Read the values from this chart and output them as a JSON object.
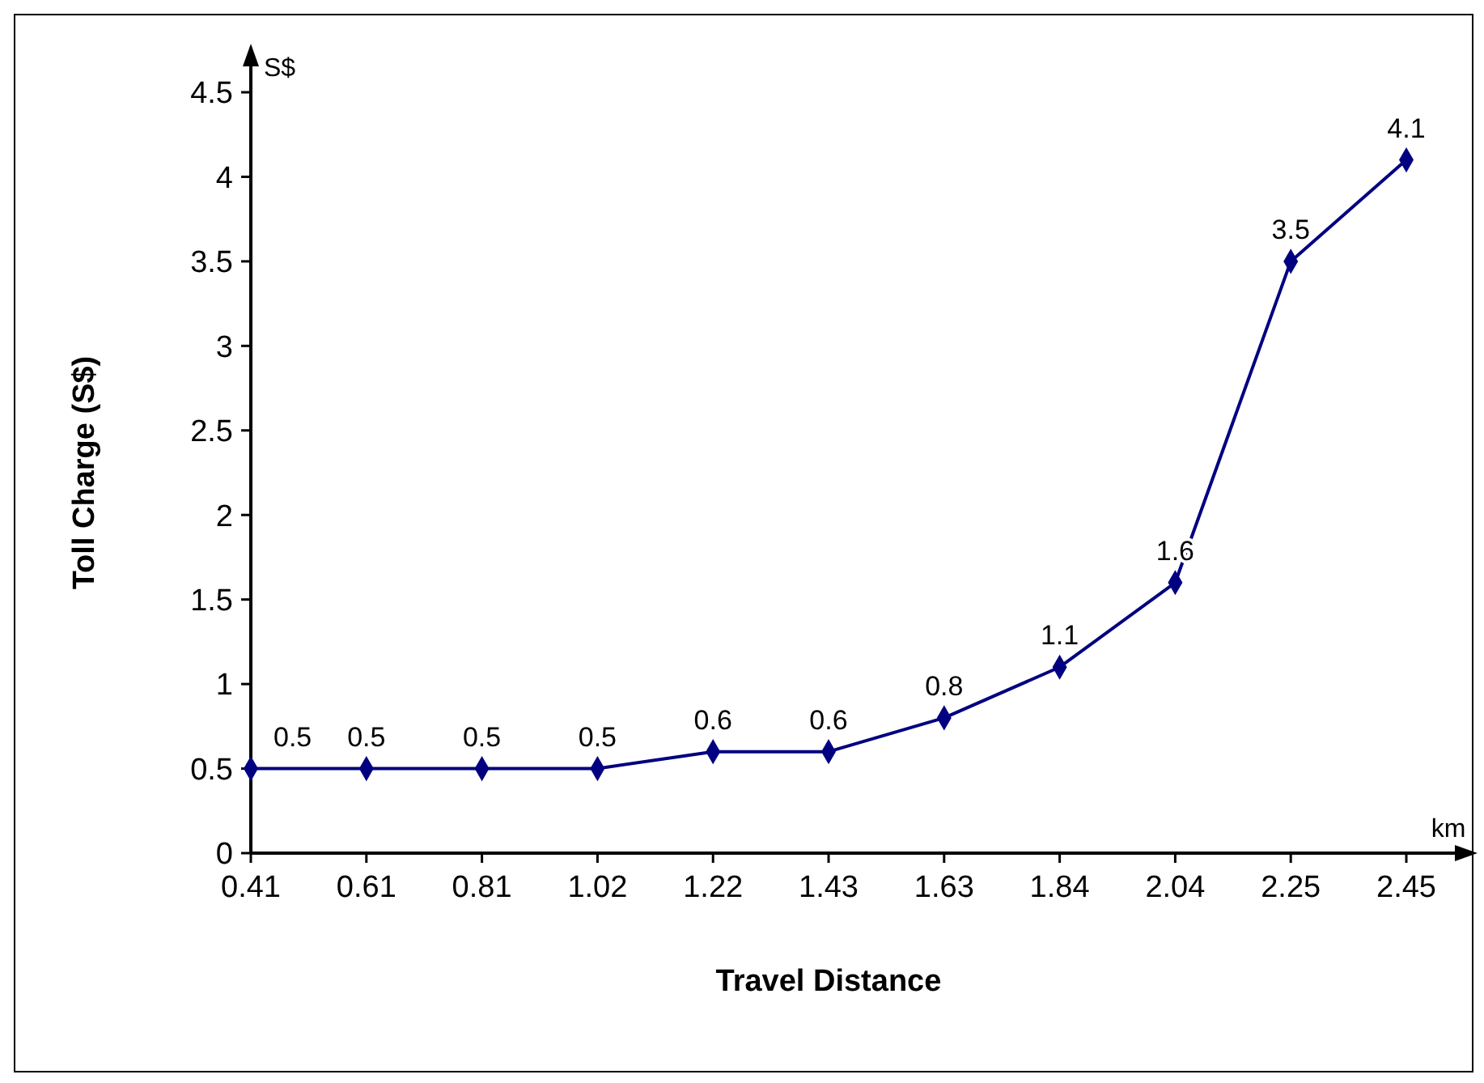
{
  "chart_data": {
    "type": "line",
    "xlabel": "Travel Distance",
    "ylabel": "Toll Charge (S$)",
    "categories": [
      "0.41",
      "0.61",
      "0.81",
      "1.02",
      "1.22",
      "1.43",
      "1.63",
      "1.84",
      "2.04",
      "2.25",
      "2.45"
    ],
    "series": [
      {
        "color": "#000080",
        "values": [
          0.5,
          0.5,
          0.5,
          0.5,
          0.6,
          0.6,
          0.8,
          1.1,
          1.6,
          3.5,
          4.1
        ]
      }
    ],
    "ylim": [
      0,
      4.5
    ],
    "yticks": [
      0,
      0.5,
      1,
      1.5,
      2,
      2.5,
      3,
      3.5,
      4,
      4.5
    ],
    "annotations": [
      "S$",
      "km"
    ],
    "data_labels": true,
    "marker": "diamond",
    "line_style": "solid",
    "grid": false
  }
}
